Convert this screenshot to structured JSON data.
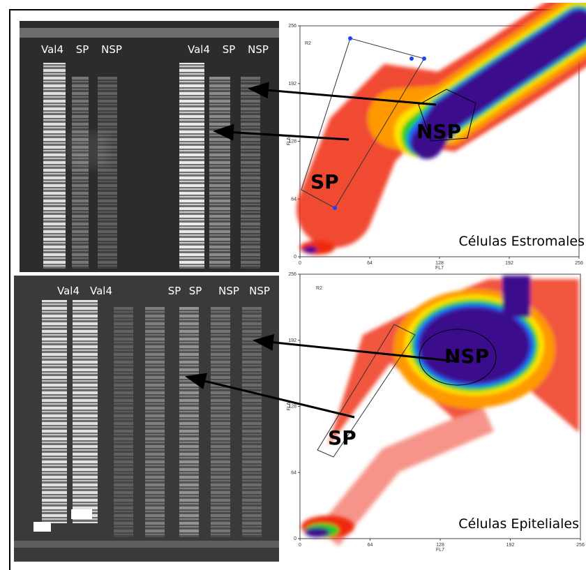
{
  "figure": [
    {
      "gel_lanes": [
        "Val4",
        "SP",
        "NSP",
        "Val4",
        "SP",
        "NSP"
      ],
      "plot": {
        "gate": "R2",
        "x_label": "FL7",
        "y_label": "FL6",
        "xticks": [
          0,
          64,
          128,
          192,
          256
        ],
        "yticks": [
          0,
          64,
          128,
          192,
          256
        ],
        "sp_label": "SP",
        "nsp_label": "NSP",
        "caption": "Células Estromales"
      }
    },
    {
      "gel_lanes": [
        "Val4",
        "Val4",
        "SP",
        "SP",
        "NSP",
        "NSP"
      ],
      "plot": {
        "gate": "R2",
        "x_label": "FL7",
        "y_label": "FL6",
        "xticks": [
          0,
          64,
          128,
          192,
          256
        ],
        "yticks": [
          0,
          64,
          128,
          192,
          256
        ],
        "sp_label": "SP",
        "nsp_label": "NSP",
        "caption": "Células Epiteliales"
      }
    }
  ]
}
